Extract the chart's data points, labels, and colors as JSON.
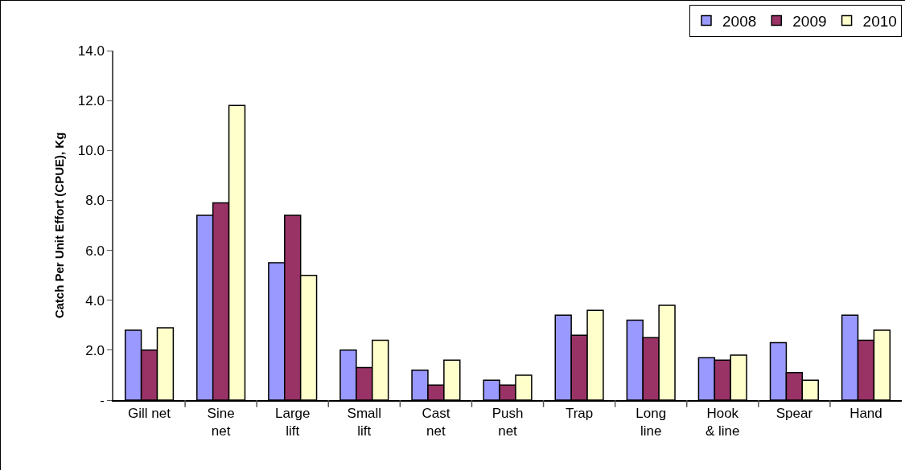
{
  "chart_data": {
    "type": "bar",
    "ylabel": "Catch Per Unit Effort (CPUE), Kg",
    "categories": [
      "Gill net",
      "Sine\nnet",
      "Large\nlift",
      "Small\nlift",
      "Cast\nnet",
      "Push\nnet",
      "Trap",
      "Long\nline",
      "Hook\n& line",
      "Spear",
      "Hand"
    ],
    "series": [
      {
        "name": "2008",
        "color": "#9999ff",
        "values": [
          2.8,
          7.4,
          5.5,
          2.0,
          1.2,
          0.8,
          3.4,
          3.2,
          1.7,
          2.3,
          3.4
        ]
      },
      {
        "name": "2009",
        "color": "#993366",
        "values": [
          2.0,
          7.9,
          7.4,
          1.3,
          0.6,
          0.6,
          2.6,
          2.5,
          1.6,
          1.1,
          2.4
        ]
      },
      {
        "name": "2010",
        "color": "#ffffcc",
        "values": [
          2.9,
          11.8,
          5.0,
          2.4,
          1.6,
          1.0,
          3.6,
          3.8,
          1.8,
          0.8,
          2.8
        ]
      }
    ],
    "ylim": [
      0,
      14
    ],
    "yticks": [
      {
        "value": 0,
        "label": "-"
      },
      {
        "value": 2,
        "label": "2.0"
      },
      {
        "value": 4,
        "label": "4.0"
      },
      {
        "value": 6,
        "label": "6.0"
      },
      {
        "value": 8,
        "label": "8.0"
      },
      {
        "value": 10,
        "label": "10.0"
      },
      {
        "value": 12,
        "label": "12.0"
      },
      {
        "value": 14,
        "label": "14.0"
      }
    ],
    "grid": false,
    "legend": "top right"
  }
}
